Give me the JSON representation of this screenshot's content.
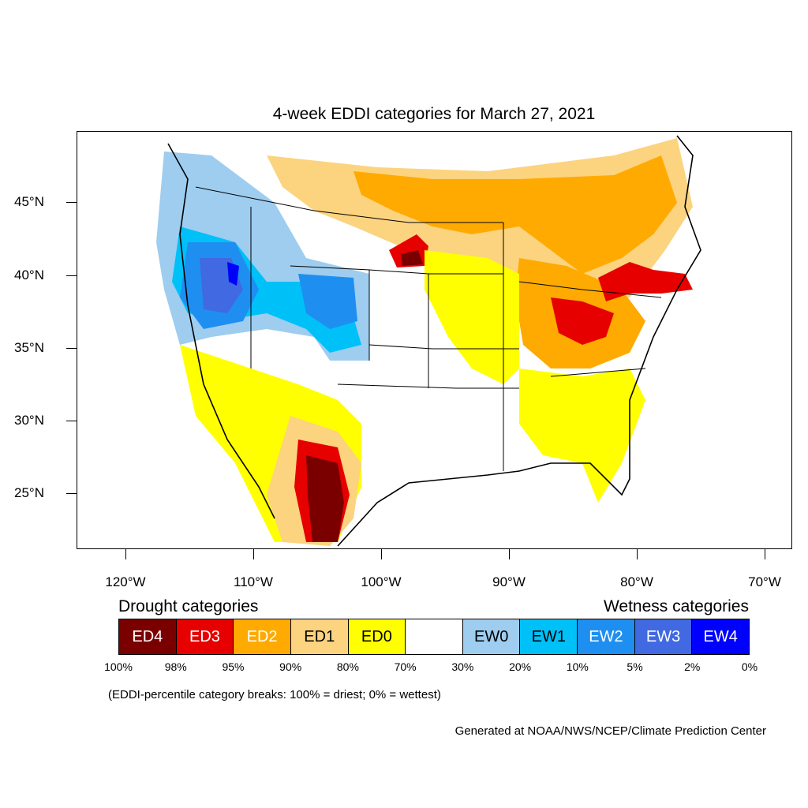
{
  "title": "4-week EDDI categories for March 27, 2021",
  "lat_labels": [
    "45°N",
    "40°N",
    "35°N",
    "30°N",
    "25°N"
  ],
  "lon_labels": [
    "120°W",
    "110°W",
    "100°W",
    "90°W",
    "80°W",
    "70°W"
  ],
  "legend": {
    "drought_heading": "Drought categories",
    "wetness_heading": "Wetness categories",
    "categories": [
      {
        "label": "ED4",
        "color": "#7a0000",
        "text_color": "#ffffff"
      },
      {
        "label": "ED3",
        "color": "#e60000",
        "text_color": "#ffffff"
      },
      {
        "label": "ED2",
        "color": "#ffaa00",
        "text_color": "#ffffff"
      },
      {
        "label": "ED1",
        "color": "#fcd37f",
        "text_color": "#000000"
      },
      {
        "label": "ED0",
        "color": "#ffff00",
        "text_color": "#000000"
      },
      {
        "label": "",
        "color": "#ffffff",
        "text_color": "#000000"
      },
      {
        "label": "EW0",
        "color": "#9ecdef",
        "text_color": "#000000"
      },
      {
        "label": "EW1",
        "color": "#00c0f8",
        "text_color": "#000000"
      },
      {
        "label": "EW2",
        "color": "#1e8ff0",
        "text_color": "#ffffff"
      },
      {
        "label": "EW3",
        "color": "#4169e1",
        "text_color": "#ffffff"
      },
      {
        "label": "EW4",
        "color": "#0000ff",
        "text_color": "#ffffff"
      }
    ],
    "breaks": [
      "100%",
      "98%",
      "95%",
      "90%",
      "80%",
      "70%",
      "30%",
      "20%",
      "10%",
      "5%",
      "2%",
      "0%"
    ]
  },
  "note": "(EDDI-percentile category breaks: 100% = driest; 0% = wettest)",
  "credit": "Generated at NOAA/NWS/NCEP/Climate Prediction Center"
}
